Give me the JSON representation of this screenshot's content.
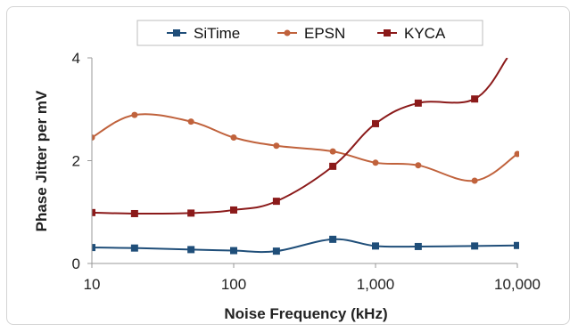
{
  "chart_data": {
    "type": "line",
    "title": "",
    "xlabel": "Noise Frequency (kHz)",
    "ylabel": "Phase Jitter per mV",
    "x_scale": "log",
    "xlim": [
      10,
      10000
    ],
    "ylim": [
      0,
      4
    ],
    "x_ticks": [
      10,
      100,
      1000,
      10000
    ],
    "x_tick_labels": [
      "10",
      "100",
      "1,000",
      "10,000"
    ],
    "y_ticks": [
      0,
      2,
      4
    ],
    "y_tick_labels": [
      "0",
      "2",
      "4"
    ],
    "grid": false,
    "legend_position": "top",
    "series": [
      {
        "name": "SiTime",
        "color": "#1f4e79",
        "marker": "square",
        "x": [
          10,
          20,
          50,
          100,
          200,
          500,
          1000,
          2000,
          5000,
          10000
        ],
        "y": [
          0.31,
          0.3,
          0.27,
          0.25,
          0.24,
          0.47,
          0.34,
          0.33,
          0.34,
          0.35
        ]
      },
      {
        "name": "EPSN",
        "color": "#c0623c",
        "marker": "circle",
        "x": [
          10,
          20,
          50,
          100,
          200,
          500,
          1000,
          2000,
          5000,
          10000
        ],
        "y": [
          2.45,
          2.89,
          2.76,
          2.45,
          2.29,
          2.18,
          1.96,
          1.91,
          1.61,
          2.13
        ]
      },
      {
        "name": "KYCA",
        "color": "#8b1a1a",
        "marker": "square",
        "x": [
          10,
          20,
          50,
          100,
          200,
          500,
          1000,
          2000,
          5000,
          8500
        ],
        "y": [
          0.99,
          0.97,
          0.98,
          1.04,
          1.21,
          1.89,
          2.72,
          3.12,
          3.2,
          4.0
        ]
      }
    ]
  }
}
